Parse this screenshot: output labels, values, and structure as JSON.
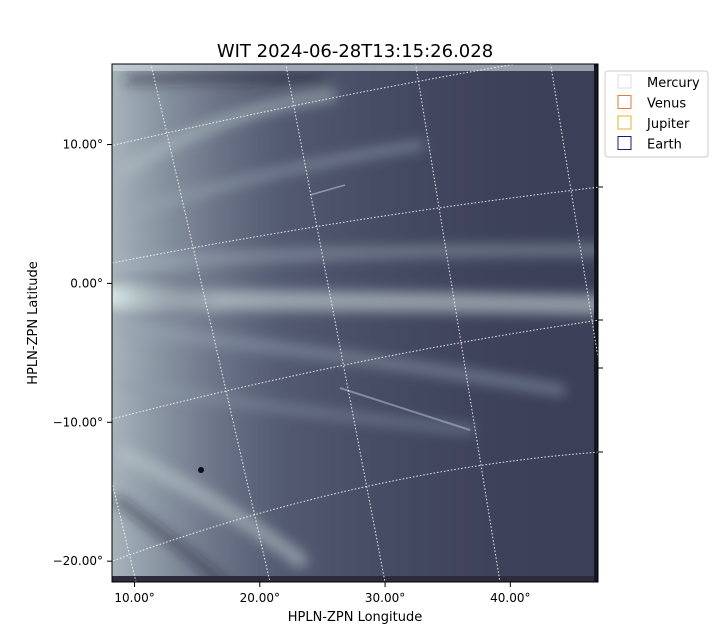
{
  "chart_data": {
    "type": "scatter",
    "title": "WIT 2024-06-28T13:15:26.028",
    "xlabel": "HPLN-ZPN Longitude",
    "ylabel": "HPLN-ZPN Latitude",
    "xlim": [
      8.2,
      47.0
    ],
    "ylim": [
      -21.5,
      15.8
    ],
    "x_ticks": [
      {
        "value": 10,
        "label": "10.00°"
      },
      {
        "value": 20,
        "label": "20.00°"
      },
      {
        "value": 30,
        "label": "30.00°"
      },
      {
        "value": 40,
        "label": "40.00°"
      }
    ],
    "y_ticks": [
      {
        "value": 10,
        "label": "10.00°"
      },
      {
        "value": 0,
        "label": "0.00°"
      },
      {
        "value": -10,
        "label": "-10.00°"
      },
      {
        "value": -20,
        "label": "-20.00°"
      }
    ],
    "grid": true,
    "legend_position": "top-right-outside",
    "series": [
      {
        "name": "Mercury",
        "color": "#dddddd",
        "values": []
      },
      {
        "name": "Venus",
        "color": "#e07b39",
        "values": []
      },
      {
        "name": "Jupiter",
        "color": "#e8b020",
        "values": []
      },
      {
        "name": "Earth",
        "color": "#1a1a80",
        "values": []
      }
    ]
  }
}
